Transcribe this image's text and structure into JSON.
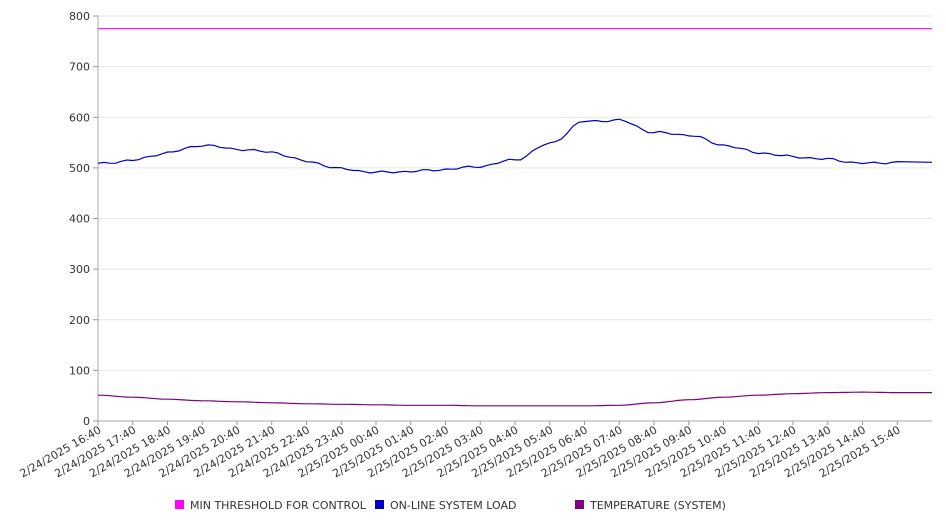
{
  "chart_data": {
    "type": "line",
    "title": "",
    "xlabel": "",
    "ylabel": "",
    "ylim": [
      0,
      800
    ],
    "yticks": [
      0,
      100,
      200,
      300,
      400,
      500,
      600,
      700,
      800
    ],
    "grid": true,
    "legend": "bottom",
    "x": [
      "2/24/2025 16:40",
      "2/24/2025 17:40",
      "2/24/2025 18:40",
      "2/24/2025 19:40",
      "2/24/2025 20:40",
      "2/24/2025 21:40",
      "2/24/2025 22:40",
      "2/24/2025 23:40",
      "2/25/2025 00:40",
      "2/25/2025 01:40",
      "2/25/2025 02:40",
      "2/25/2025 03:40",
      "2/25/2025 04:40",
      "2/25/2025 05:40",
      "2/25/2025 06:40",
      "2/25/2025 07:40",
      "2/25/2025 08:40",
      "2/25/2025 09:40",
      "2/25/2025 10:40",
      "2/25/2025 11:40",
      "2/25/2025 12:40",
      "2/25/2025 13:40",
      "2/25/2025 14:40",
      "2/25/2025 15:40"
    ],
    "series": [
      {
        "name": "MIN THRESHOLD FOR CONTROL",
        "color": "#ff00ff",
        "values": [
          775,
          775,
          775,
          775,
          775,
          775,
          775,
          775,
          775,
          775,
          775,
          775,
          775,
          775,
          775,
          775,
          775,
          775,
          775,
          775,
          775,
          775,
          775,
          775
        ]
      },
      {
        "name": "ON-LINE SYSTEM LOAD",
        "color": "#0000cc",
        "values": [
          508,
          515,
          530,
          545,
          537,
          531,
          513,
          498,
          491,
          493,
          497,
          503,
          516,
          548,
          592,
          594,
          570,
          565,
          545,
          530,
          522,
          517,
          509,
          511
        ]
      },
      {
        "name": "TEMPERATURE (SYSTEM)",
        "color": "#800080",
        "values": [
          51,
          47,
          43,
          40,
          38,
          36,
          34,
          33,
          32,
          31,
          31,
          30,
          30,
          30,
          30,
          31,
          36,
          42,
          47,
          51,
          54,
          56,
          57,
          56
        ]
      }
    ]
  }
}
